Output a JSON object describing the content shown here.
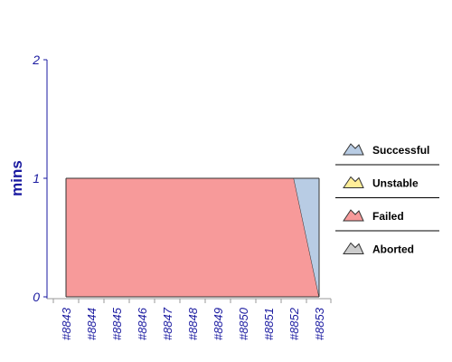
{
  "chart_data": {
    "type": "area",
    "stacked": true,
    "categories": [
      "#8843",
      "#8844",
      "#8845",
      "#8846",
      "#8847",
      "#8848",
      "#8849",
      "#8850",
      "#8851",
      "#8852",
      "#8853"
    ],
    "series": [
      {
        "name": "Successful",
        "color": "#b8cce4",
        "values": [
          0,
          0,
          0,
          0,
          0,
          0,
          0,
          0,
          0,
          0,
          1
        ]
      },
      {
        "name": "Unstable",
        "color": "#ffee99",
        "values": [
          0,
          0,
          0,
          0,
          0,
          0,
          0,
          0,
          0,
          0,
          0
        ]
      },
      {
        "name": "Failed",
        "color": "#f79a9a",
        "values": [
          1,
          1,
          1,
          1,
          1,
          1,
          1,
          1,
          1,
          1,
          0
        ]
      },
      {
        "name": "Aborted",
        "color": "#cccccc",
        "values": [
          0,
          0,
          0,
          0,
          0,
          0,
          0,
          0,
          0,
          0,
          0
        ]
      }
    ],
    "ylabel": "mins",
    "xlabel": "",
    "ylim": [
      0,
      2
    ],
    "yticks": [
      "0",
      "1",
      "2"
    ],
    "grid": false,
    "legend_position": "right"
  }
}
